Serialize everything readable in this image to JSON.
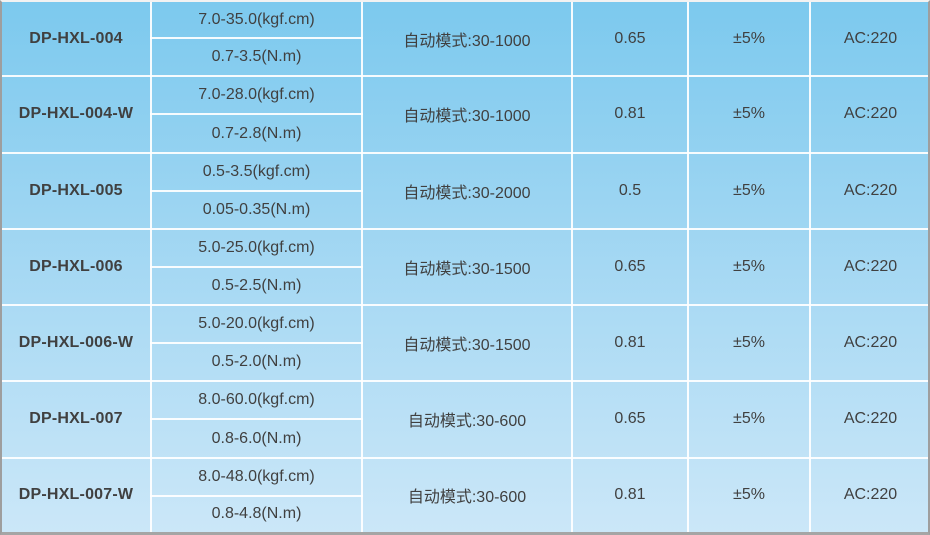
{
  "table": {
    "rows": [
      {
        "model": "DP-HXL-004",
        "torque_kgf": "7.0-35.0(kgf.cm)",
        "torque_nm": "0.7-3.5(N.m)",
        "mode": "自动模式:30-1000",
        "value": "0.65",
        "tolerance": "±5%",
        "power": "AC:220"
      },
      {
        "model": "DP-HXL-004-W",
        "torque_kgf": "7.0-28.0(kgf.cm)",
        "torque_nm": "0.7-2.8(N.m)",
        "mode": "自动模式:30-1000",
        "value": "0.81",
        "tolerance": "±5%",
        "power": "AC:220"
      },
      {
        "model": "DP-HXL-005",
        "torque_kgf": "0.5-3.5(kgf.cm)",
        "torque_nm": "0.05-0.35(N.m)",
        "mode": "自动模式:30-2000",
        "value": "0.5",
        "tolerance": "±5%",
        "power": "AC:220"
      },
      {
        "model": "DP-HXL-006",
        "torque_kgf": "5.0-25.0(kgf.cm)",
        "torque_nm": "0.5-2.5(N.m)",
        "mode": "自动模式:30-1500",
        "value": "0.65",
        "tolerance": "±5%",
        "power": "AC:220"
      },
      {
        "model": "DP-HXL-006-W",
        "torque_kgf": "5.0-20.0(kgf.cm)",
        "torque_nm": "0.5-2.0(N.m)",
        "mode": "自动模式:30-1500",
        "value": "0.81",
        "tolerance": "±5%",
        "power": "AC:220"
      },
      {
        "model": "DP-HXL-007",
        "torque_kgf": "8.0-60.0(kgf.cm)",
        "torque_nm": "0.8-6.0(N.m)",
        "mode": "自动模式:30-600",
        "value": "0.65",
        "tolerance": "±5%",
        "power": "AC:220"
      },
      {
        "model": "DP-HXL-007-W",
        "torque_kgf": "8.0-48.0(kgf.cm)",
        "torque_nm": "0.8-4.8(N.m)",
        "mode": "自动模式:30-600",
        "value": "0.81",
        "tolerance": "±5%",
        "power": "AC:220"
      }
    ]
  },
  "colors": {
    "gradient_top": "#7cc9ee",
    "gradient_bottom": "#cbe7f8",
    "divider": "#ffffff",
    "outer_border": "#9e9e9e",
    "text": "#404040",
    "model_text": "#2e2e2e"
  }
}
